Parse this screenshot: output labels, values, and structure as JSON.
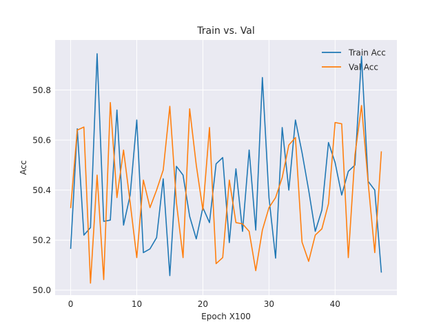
{
  "chart_data": {
    "type": "line",
    "title": "Train vs. Val",
    "xlabel": "Epoch X100",
    "ylabel": "Acc",
    "xlim": [
      -2.35,
      49.35
    ],
    "ylim": [
      49.98,
      51.0
    ],
    "xticks": [
      0,
      10,
      20,
      30,
      40
    ],
    "yticks": [
      50.0,
      50.2,
      50.4,
      50.6,
      50.8
    ],
    "ytick_labels": [
      "50.0",
      "50.2",
      "50.4",
      "50.6",
      "50.8"
    ],
    "grid": true,
    "legend_position": "top-right",
    "x": [
      0,
      1,
      2,
      3,
      4,
      5,
      6,
      7,
      8,
      9,
      10,
      11,
      12,
      13,
      14,
      15,
      16,
      17,
      18,
      19,
      20,
      21,
      22,
      23,
      24,
      25,
      26,
      27,
      28,
      29,
      30,
      31,
      32,
      33,
      34,
      35,
      36,
      37,
      38,
      39,
      40,
      41,
      42,
      43,
      44,
      45,
      46,
      47
    ],
    "series": [
      {
        "name": "Train Acc",
        "color": "#1f77b4",
        "values": [
          50.165,
          50.645,
          50.22,
          50.25,
          50.945,
          50.275,
          50.28,
          50.72,
          50.26,
          50.38,
          50.68,
          50.15,
          50.165,
          50.21,
          50.445,
          50.058,
          50.495,
          50.46,
          50.295,
          50.205,
          50.33,
          50.27,
          50.505,
          50.53,
          50.19,
          50.485,
          50.235,
          50.56,
          50.24,
          50.85,
          50.37,
          50.128,
          50.65,
          50.4,
          50.68,
          50.55,
          50.4,
          50.235,
          50.32,
          50.59,
          50.51,
          50.38,
          50.475,
          50.5,
          50.935,
          50.435,
          50.4,
          50.07
        ]
      },
      {
        "name": "Val Acc",
        "color": "#ff7f0e",
        "values": [
          50.328,
          50.64,
          50.652,
          50.028,
          50.46,
          50.042,
          50.75,
          50.37,
          50.56,
          50.35,
          50.13,
          50.44,
          50.33,
          50.4,
          50.48,
          50.735,
          50.35,
          50.13,
          50.725,
          50.5,
          50.32,
          50.65,
          50.106,
          50.13,
          50.44,
          50.27,
          50.265,
          50.235,
          50.078,
          50.24,
          50.33,
          50.37,
          50.45,
          50.58,
          50.61,
          50.192,
          50.115,
          50.22,
          50.245,
          50.345,
          50.67,
          50.665,
          50.13,
          50.54,
          50.738,
          50.43,
          50.15,
          50.555
        ]
      }
    ]
  }
}
